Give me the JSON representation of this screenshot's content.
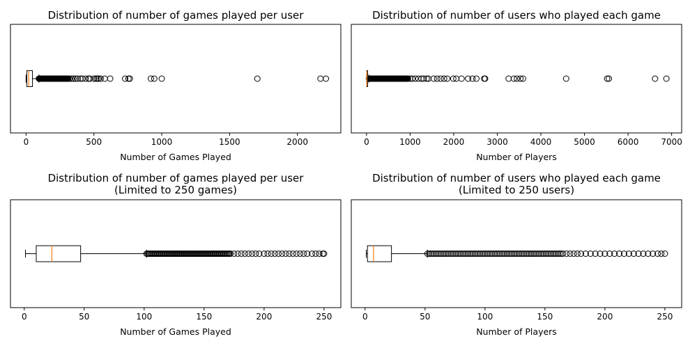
{
  "chart_data": [
    {
      "type": "boxplot",
      "orientation": "horizontal",
      "title": "Distribution of number of games played per user",
      "subtitle": "",
      "xlabel": "Number of Games Played",
      "ylabel": "",
      "xlim": [
        -115,
        2320
      ],
      "xticks": [
        0,
        500,
        1000,
        1500,
        2000
      ],
      "box": {
        "whisker_low": 0,
        "q1": 6,
        "median": 20,
        "q3": 47,
        "whisker_high": 95
      },
      "outliers": {
        "dense_range": [
          95,
          310
        ],
        "points": [
          320,
          335,
          350,
          365,
          380,
          400,
          415,
          440,
          460,
          470,
          500,
          515,
          525,
          535,
          550,
          580,
          620,
          730,
          755,
          765,
          920,
          945,
          1000,
          1705,
          2170,
          2210
        ]
      }
    },
    {
      "type": "boxplot",
      "orientation": "horizontal",
      "title": "Distribution of number of users who played each game",
      "subtitle": "",
      "xlabel": "Number of Players",
      "ylabel": "",
      "xlim": [
        -350,
        7230
      ],
      "xticks": [
        0,
        1000,
        2000,
        3000,
        4000,
        5000,
        6000,
        7000
      ],
      "box": {
        "whisker_low": 0,
        "q1": 1,
        "median": 5,
        "q3": 25,
        "whisker_high": 55
      },
      "outliers": {
        "dense_range": [
          55,
          950
        ],
        "points": [
          1000,
          1050,
          1120,
          1190,
          1260,
          1310,
          1380,
          1420,
          1540,
          1620,
          1700,
          1780,
          1850,
          1990,
          2060,
          2180,
          2330,
          2430,
          2520,
          2700,
          2720,
          3260,
          3380,
          3450,
          3530,
          3590,
          4580,
          5520,
          5560,
          6620,
          6880
        ]
      }
    },
    {
      "type": "boxplot",
      "orientation": "horizontal",
      "title": "Distribution of number of games played per user",
      "subtitle": "(Limited to 250 games)",
      "xlabel": "Number of Games Played",
      "ylabel": "",
      "xlim": [
        -11.5,
        264
      ],
      "xticks": [
        0,
        50,
        100,
        150,
        200,
        250
      ],
      "box": {
        "whisker_low": 1,
        "q1": 10,
        "median": 23,
        "q3": 47,
        "whisker_high": 102
      },
      "outliers": {
        "dense_range": [
          102,
          172
        ],
        "points": [
          175,
          178,
          181,
          184,
          187,
          190,
          193,
          196,
          200,
          203,
          206,
          209,
          212,
          215,
          218,
          221,
          224,
          227,
          230,
          233,
          236,
          240,
          243,
          246,
          249,
          250
        ]
      }
    },
    {
      "type": "boxplot",
      "orientation": "horizontal",
      "title": "Distribution of number of users who played each game",
      "subtitle": "(Limited to 250 users)",
      "xlabel": "Number of Players",
      "ylabel": "",
      "xlim": [
        -11.5,
        264
      ],
      "xticks": [
        0,
        50,
        100,
        150,
        200,
        250
      ],
      "box": {
        "whisker_low": 1,
        "q1": 2,
        "median": 7,
        "q3": 22,
        "whisker_high": 52
      },
      "outliers": {
        "dense_range": [
          52,
          165
        ],
        "points": [
          168,
          171,
          174,
          177,
          180,
          184,
          188,
          192,
          196,
          200,
          204,
          208,
          212,
          216,
          220,
          224,
          228,
          232,
          236,
          240,
          244,
          247,
          250
        ]
      }
    }
  ],
  "colors": {
    "median": "#ff7f0e",
    "box": "#000000",
    "background": "#ffffff"
  }
}
